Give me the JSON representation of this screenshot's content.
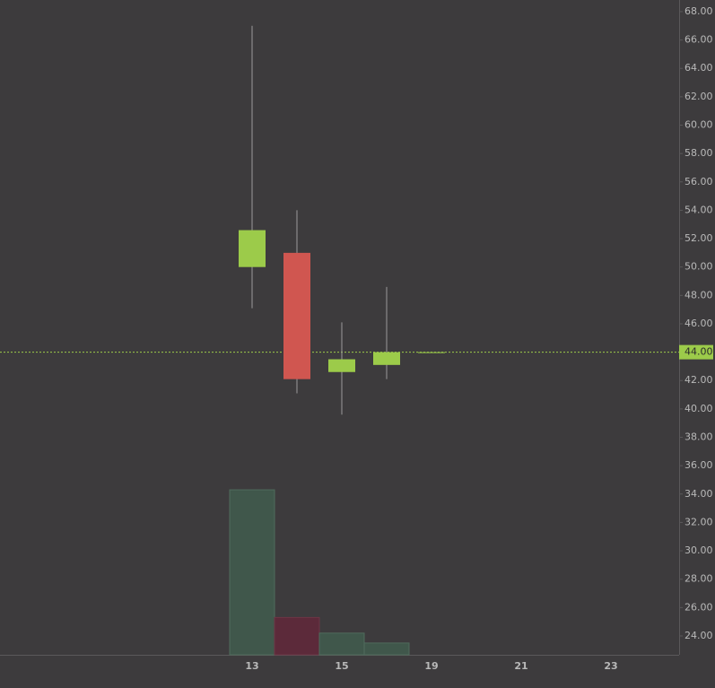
{
  "chart_data": {
    "type": "candlestick",
    "categories": [
      "13",
      null,
      "15",
      null,
      "19",
      null,
      "21",
      null,
      "23"
    ],
    "open": [
      50.0,
      51.0,
      42.6,
      43.1,
      44.0,
      null,
      null,
      null,
      null
    ],
    "high": [
      67.0,
      54.0,
      46.1,
      48.6,
      44.0,
      null,
      null,
      null,
      null
    ],
    "low": [
      47.1,
      41.1,
      39.6,
      42.1,
      44.0,
      null,
      null,
      null,
      null
    ],
    "close": [
      52.6,
      42.1,
      43.5,
      44.0,
      44.0,
      null,
      null,
      null,
      null
    ],
    "volume": [
      34.3,
      25.3,
      24.2,
      23.5,
      null,
      null,
      null,
      null,
      null
    ],
    "up_color": "#9ccb4a",
    "down_color": "#d05650",
    "volume_up_color": "#40574b",
    "volume_down_color": "#5c2a3a",
    "last_price": {
      "value": 44.0,
      "label": "44.00"
    },
    "ylim": [
      22.67,
      68.82
    ],
    "yticks": [
      {
        "value": 24,
        "label": "24.00"
      },
      {
        "value": 26,
        "label": "26.00"
      },
      {
        "value": 28,
        "label": "28.00"
      },
      {
        "value": 30,
        "label": "30.00"
      },
      {
        "value": 32,
        "label": "32.00"
      },
      {
        "value": 34,
        "label": "34.00"
      },
      {
        "value": 36,
        "label": "36.00"
      },
      {
        "value": 38,
        "label": "38.00"
      },
      {
        "value": 40,
        "label": "40.00"
      },
      {
        "value": 42,
        "label": "42.00"
      },
      {
        "value": 44,
        "label": "44.00"
      },
      {
        "value": 46,
        "label": "46.00"
      },
      {
        "value": 48,
        "label": "48.00"
      },
      {
        "value": 50,
        "label": "50.00"
      },
      {
        "value": 52,
        "label": "52.00"
      },
      {
        "value": 54,
        "label": "54.00"
      },
      {
        "value": 56,
        "label": "56.00"
      },
      {
        "value": 58,
        "label": "58.00"
      },
      {
        "value": 60,
        "label": "60.00"
      },
      {
        "value": 62,
        "label": "62.00"
      },
      {
        "value": 64,
        "label": "64.00"
      },
      {
        "value": 66,
        "label": "66.00"
      },
      {
        "value": 68,
        "label": "68.00"
      }
    ]
  }
}
